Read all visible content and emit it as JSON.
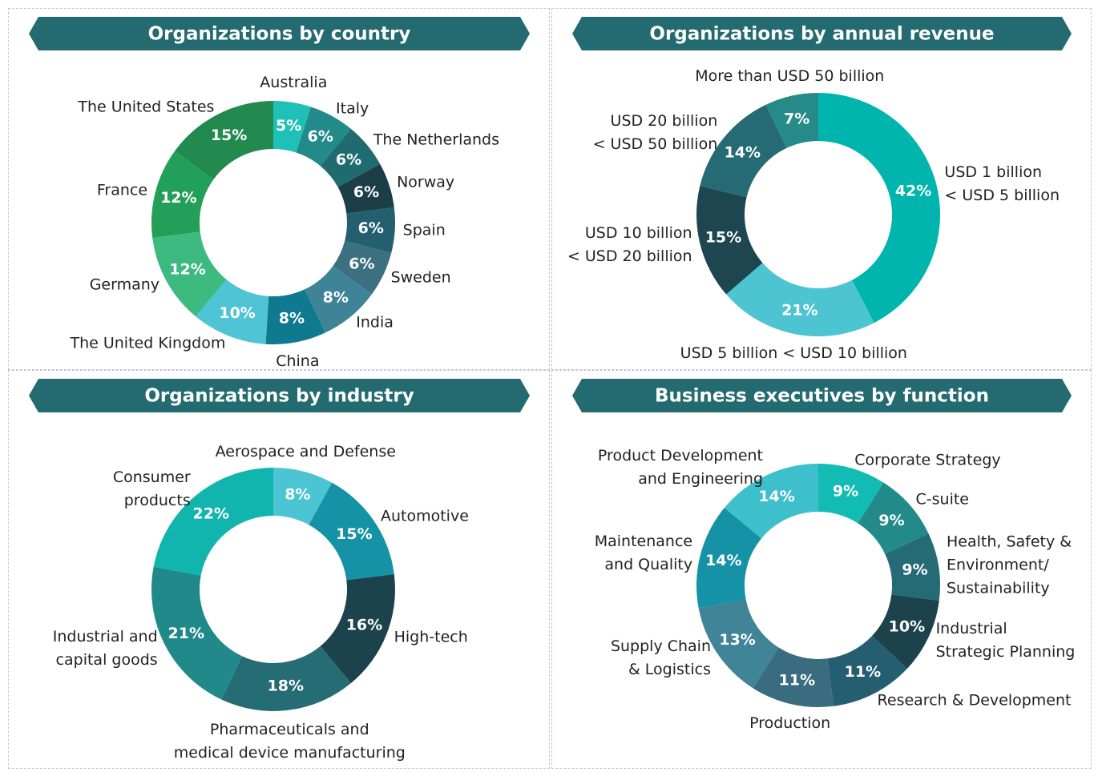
{
  "chart_data": [
    {
      "type": "donut",
      "title": "Organizations by country",
      "categories": [
        "Australia",
        "Italy",
        "The Netherlands",
        "Norway",
        "Spain",
        "Sweden",
        "India",
        "China",
        "The United Kingdom",
        "Germany",
        "France",
        "The United States"
      ],
      "values": [
        5,
        6,
        6,
        6,
        6,
        6,
        8,
        8,
        10,
        12,
        12,
        15
      ],
      "value_labels": [
        "5%",
        "6%",
        "6%",
        "6%",
        "6%",
        "6%",
        "8%",
        "8%",
        "10%",
        "12%",
        "12%",
        "15%"
      ],
      "colors": [
        "#1fc0b8",
        "#238a8a",
        "#1f6b70",
        "#1c3f47",
        "#235f6e",
        "#3c6f80",
        "#3f8496",
        "#0f7a8f",
        "#4ec4d4",
        "#3dba80",
        "#22a05a",
        "#238a4f"
      ]
    },
    {
      "type": "donut",
      "title": "Organizations by annual revenue",
      "categories": [
        "USD 1 billion\n< USD 5 billion",
        "USD 5 billion < USD 10 billion",
        "USD 10 billion\n< USD 20 billion",
        "USD 20 billion\n< USD 50 billion",
        "More than USD 50 billion"
      ],
      "values": [
        42,
        21,
        15,
        14,
        7
      ],
      "value_labels": [
        "42%",
        "21%",
        "15%",
        "14%",
        "7%"
      ],
      "colors": [
        "#00b5ad",
        "#4cc4d2",
        "#1d4650",
        "#266a74",
        "#258a88"
      ]
    },
    {
      "type": "donut",
      "title": "Organizations by industry",
      "categories": [
        "Aerospace and Defense",
        "Automotive",
        "High-tech",
        "Pharmaceuticals and\nmedical device manufacturing",
        "Industrial and\ncapital goods",
        "Consumer\nproducts"
      ],
      "values": [
        8,
        15,
        16,
        18,
        21,
        22
      ],
      "value_labels": [
        "8%",
        "15%",
        "16%",
        "18%",
        "21%",
        "22%"
      ],
      "colors": [
        "#4cc4d4",
        "#1592a5",
        "#1c434c",
        "#256c74",
        "#22898a",
        "#12b5ae"
      ]
    },
    {
      "type": "donut",
      "title": "Business executives by function",
      "categories": [
        "Corporate Strategy",
        "C-suite",
        "Health, Safety &\nEnvironment/\nSustainability",
        "Industrial\nStrategic Planning",
        "Research & Development",
        "Production",
        "Supply Chain\n& Logistics",
        "Maintenance\nand Quality",
        "Product Development\nand Engineering"
      ],
      "values": [
        9,
        9,
        9,
        10,
        11,
        11,
        13,
        14,
        14
      ],
      "value_labels": [
        "9%",
        "9%",
        "9%",
        "10%",
        "11%",
        "11%",
        "13%",
        "14%",
        "14%"
      ],
      "colors": [
        "#12bcb5",
        "#238a8a",
        "#256a74",
        "#1c434c",
        "#245e70",
        "#3a6c80",
        "#3f8497",
        "#1592a5",
        "#3ec0cc"
      ]
    }
  ]
}
